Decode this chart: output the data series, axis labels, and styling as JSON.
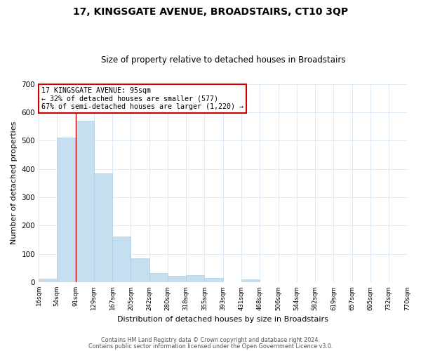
{
  "title": "17, KINGSGATE AVENUE, BROADSTAIRS, CT10 3QP",
  "subtitle": "Size of property relative to detached houses in Broadstairs",
  "xlabel": "Distribution of detached houses by size in Broadstairs",
  "ylabel": "Number of detached properties",
  "footnote1": "Contains HM Land Registry data © Crown copyright and database right 2024.",
  "footnote2": "Contains public sector information licensed under the Open Government Licence v3.0.",
  "bin_labels": [
    "16sqm",
    "54sqm",
    "91sqm",
    "129sqm",
    "167sqm",
    "205sqm",
    "242sqm",
    "280sqm",
    "318sqm",
    "355sqm",
    "393sqm",
    "431sqm",
    "468sqm",
    "506sqm",
    "544sqm",
    "582sqm",
    "619sqm",
    "657sqm",
    "695sqm",
    "732sqm",
    "770sqm"
  ],
  "bar_heights": [
    13,
    510,
    570,
    385,
    160,
    83,
    33,
    22,
    24,
    14,
    0,
    10,
    0,
    0,
    0,
    0,
    0,
    0,
    0,
    0
  ],
  "bar_color": "#c5dff0",
  "bar_edge_color": "#a8cfe0",
  "ylim": [
    0,
    700
  ],
  "yticks": [
    0,
    100,
    200,
    300,
    400,
    500,
    600,
    700
  ],
  "grid_color": "#daeaf6",
  "property_line_x": 2.0,
  "property_line_color": "#cc0000",
  "annotation_text": "17 KINGSGATE AVENUE: 95sqm\n← 32% of detached houses are smaller (577)\n67% of semi-detached houses are larger (1,220) →",
  "annotation_box_color": "white",
  "annotation_box_edge": "#cc0000",
  "background_color": "white",
  "title_fontsize": 10,
  "subtitle_fontsize": 8.5
}
